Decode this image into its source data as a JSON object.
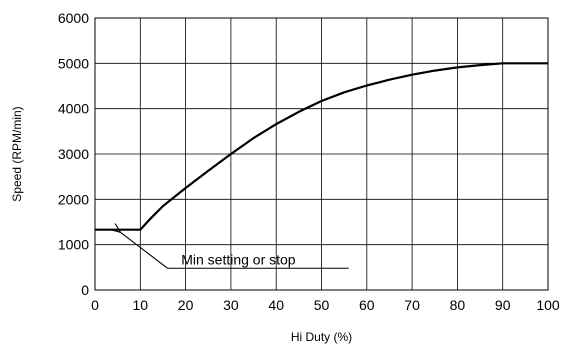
{
  "chart_data": {
    "type": "line",
    "title": "",
    "xlabel": "Hi Duty (%)",
    "ylabel": "Speed (RPM/min)",
    "xlim": [
      0,
      100
    ],
    "ylim": [
      0,
      6000
    ],
    "x_ticks": [
      0,
      10,
      20,
      30,
      40,
      50,
      60,
      70,
      80,
      90,
      100
    ],
    "y_ticks": [
      0,
      1000,
      2000,
      3000,
      4000,
      5000,
      6000
    ],
    "grid": true,
    "series": [
      {
        "x": [
          0,
          10,
          12,
          15,
          20,
          25,
          30,
          35,
          40,
          45,
          50,
          55,
          60,
          65,
          70,
          75,
          80,
          85,
          90,
          95,
          100
        ],
        "y": [
          1330,
          1330,
          1550,
          1850,
          2250,
          2630,
          3000,
          3350,
          3660,
          3930,
          4170,
          4360,
          4510,
          4640,
          4750,
          4840,
          4910,
          4960,
          5000,
          5000,
          5000
        ],
        "color": "#000000"
      }
    ],
    "annotations": [
      {
        "text": "Min setting or stop",
        "target": [
          5,
          1330
        ],
        "text_anchor": [
          15.5,
          650
        ],
        "underline_x": [
          16,
          56
        ],
        "underline_y": 480
      }
    ]
  }
}
